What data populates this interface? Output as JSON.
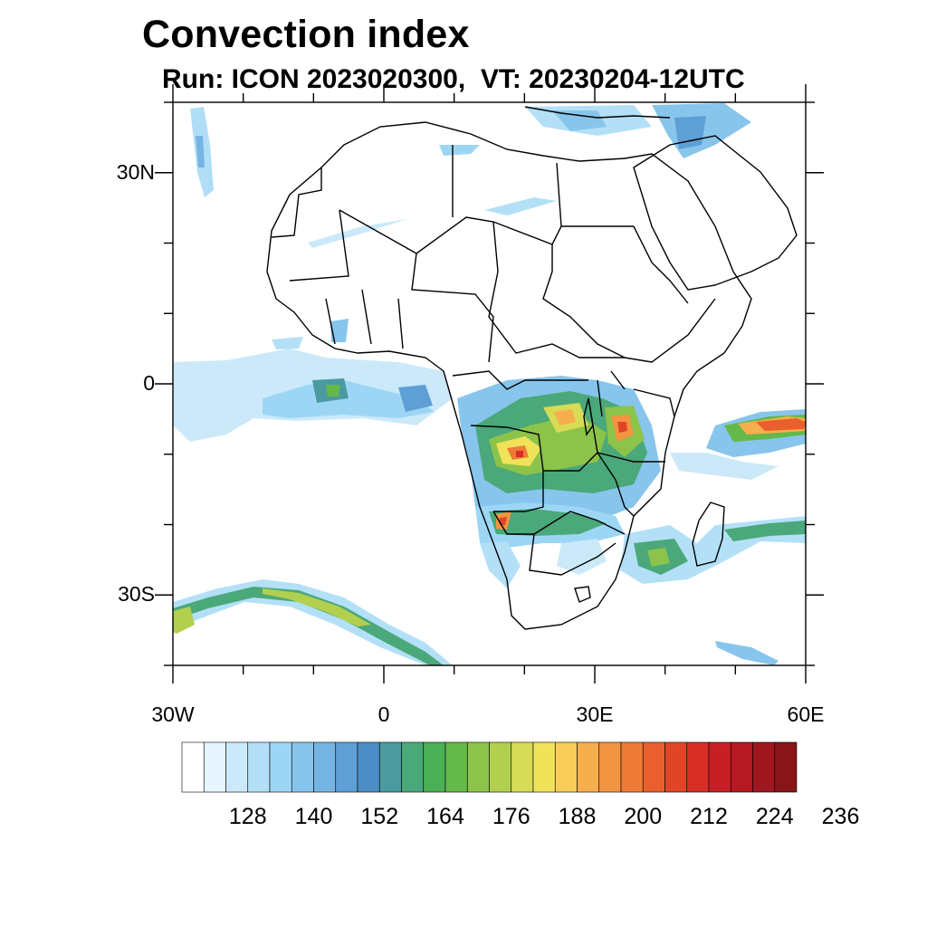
{
  "title": "Convection index",
  "subtitle": "Run: ICON 2023020300,  VT: 20230204-12UTC",
  "axes": {
    "lat_labels": [
      {
        "label": "30N",
        "lat": 30
      },
      {
        "label": "0",
        "lat": 0
      },
      {
        "label": "30S",
        "lat": -30
      }
    ],
    "lon_labels": [
      {
        "label": "30W",
        "lon": -30
      },
      {
        "label": "0",
        "lon": 0
      },
      {
        "label": "30E",
        "lon": 30
      },
      {
        "label": "60E",
        "lon": 60
      }
    ],
    "lon_range": [
      -30,
      60
    ],
    "lat_range": [
      -40,
      40
    ]
  },
  "colorbar": {
    "labels": [
      "128",
      "140",
      "152",
      "164",
      "176",
      "188",
      "200",
      "212",
      "224",
      "236"
    ],
    "colors": [
      "#ffffff",
      "#e6f5fd",
      "#cbe9f9",
      "#b3e0f7",
      "#9dd6f5",
      "#88c5ec",
      "#76b4e3",
      "#5e9fd6",
      "#4b8dc6",
      "#4a9aa0",
      "#4aa87a",
      "#49b055",
      "#65b84a",
      "#8cc34a",
      "#b2d04e",
      "#d6dc55",
      "#f0e35a",
      "#f8cc58",
      "#f6af4c",
      "#f39441",
      "#ef7a37",
      "#e9602e",
      "#e04528",
      "#d72f26",
      "#c62026",
      "#b51a22",
      "#a0171f",
      "#8a1519"
    ]
  }
}
